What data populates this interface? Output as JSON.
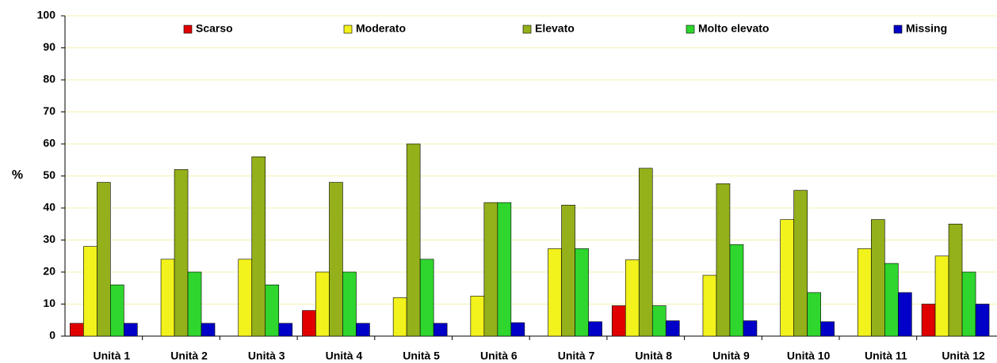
{
  "chart_data": {
    "type": "bar",
    "y_label": "%",
    "categories": [
      "Unità 1",
      "Unità 2",
      "Unità 3",
      "Unità 4",
      "Unità 5",
      "Unità 6",
      "Unità 7",
      "Unità 8",
      "Unità 9",
      "Unità 10",
      "Unità 11",
      "Unità 12"
    ],
    "series": [
      {
        "name": "Scarso",
        "color": "#e00000",
        "values": [
          4,
          0,
          0,
          8,
          0,
          0,
          0,
          9.5,
          0,
          0,
          0,
          10
        ]
      },
      {
        "name": "Moderato",
        "color": "#f2f21c",
        "values": [
          28,
          24,
          24,
          20,
          12,
          12.5,
          27.3,
          23.8,
          19,
          36.4,
          27.3,
          25
        ]
      },
      {
        "name": "Elevato",
        "color": "#94b01a",
        "values": [
          48,
          52,
          56,
          48,
          60,
          41.7,
          40.9,
          52.4,
          47.6,
          45.5,
          36.4,
          35
        ]
      },
      {
        "name": "Molto elevato",
        "color": "#2ed62e",
        "values": [
          16,
          20,
          16,
          20,
          24,
          41.7,
          27.3,
          9.5,
          28.6,
          13.6,
          22.7,
          20
        ]
      },
      {
        "name": "Missing",
        "color": "#0000c8",
        "values": [
          4,
          4,
          4,
          4,
          4,
          4.2,
          4.5,
          4.8,
          4.8,
          4.5,
          13.6,
          10
        ]
      }
    ],
    "ylim": [
      0,
      100
    ],
    "yticks": [
      0,
      10,
      20,
      30,
      40,
      50,
      60,
      70,
      80,
      90,
      100
    ],
    "grid": true,
    "legend": "top"
  }
}
